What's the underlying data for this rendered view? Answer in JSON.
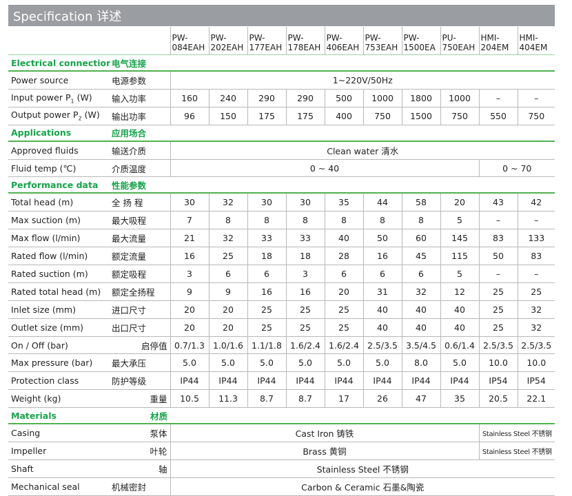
{
  "header": {
    "title": "Specification 详述"
  },
  "models": [
    [
      "PW-",
      "084EAH"
    ],
    [
      "PW-",
      "202EAH"
    ],
    [
      "PW-",
      "177EAH"
    ],
    [
      "PW-",
      "178EAH"
    ],
    [
      "PW-",
      "406EAH"
    ],
    [
      "PW-",
      "753EAH"
    ],
    [
      "PW-",
      "1500EA"
    ],
    [
      "PU-",
      "750EAH"
    ],
    [
      "HMI-",
      "204EM"
    ],
    [
      "HMI-",
      "404EM"
    ]
  ],
  "sections": {
    "electrical": {
      "en": "Electrical connection",
      "zh": "电气连接"
    },
    "applications": {
      "en": "Applications",
      "zh": "应用场合"
    },
    "performance": {
      "en": "Performance data",
      "zh": "性能参数"
    },
    "materials": {
      "en": "Materials",
      "zh": "材质"
    }
  },
  "rows": {
    "power_source": {
      "en": "Power source",
      "zh": "电源参数",
      "value": "1~220V/50Hz"
    },
    "input_power": {
      "en": "Input power P",
      "sub": "1",
      "unit": " (W)",
      "zh": "输入功率",
      "values": [
        "160",
        "240",
        "290",
        "290",
        "500",
        "1000",
        "1800",
        "1000",
        "–",
        "–"
      ]
    },
    "output_power": {
      "en": "Output power P",
      "sub": "2",
      "unit": " (W)",
      "zh": "输出功率",
      "values": [
        "96",
        "150",
        "175",
        "175",
        "400",
        "750",
        "1500",
        "750",
        "550",
        "750"
      ]
    },
    "approved_fluids": {
      "en": "Approved fluids",
      "zh": "输送介质",
      "value": "Clean water 清水"
    },
    "fluid_temp": {
      "en": "Fluid temp (℃)",
      "zh": "介质温度",
      "value_a": "0 ~ 40",
      "value_b": "0 ~ 70"
    },
    "total_head": {
      "en": "Total head (m)",
      "zh": "全 扬 程",
      "values": [
        "30",
        "32",
        "30",
        "30",
        "35",
        "44",
        "58",
        "20",
        "43",
        "42"
      ]
    },
    "max_suction": {
      "en": "Max suction (m)",
      "zh": "最大吸程",
      "values": [
        "7",
        "8",
        "8",
        "8",
        "8",
        "8",
        "8",
        "5",
        "–",
        "–"
      ]
    },
    "max_flow": {
      "en": "Max flow (l/min)",
      "zh": "最大流量",
      "values": [
        "21",
        "32",
        "33",
        "33",
        "40",
        "50",
        "60",
        "145",
        "83",
        "133"
      ]
    },
    "rated_flow": {
      "en": "Rated flow (l/min)",
      "zh": "额定流量",
      "values": [
        "16",
        "25",
        "18",
        "18",
        "28",
        "16",
        "45",
        "115",
        "50",
        "83"
      ]
    },
    "rated_suction": {
      "en": "Rated suction (m)",
      "zh": "额定吸程",
      "values": [
        "3",
        "6",
        "6",
        "3",
        "6",
        "6",
        "6",
        "5",
        "–",
        "–"
      ]
    },
    "rated_total_head": {
      "en": "Rated total head (m)",
      "zh": "额定全扬程",
      "values": [
        "9",
        "9",
        "16",
        "16",
        "20",
        "31",
        "32",
        "12",
        "25",
        "25"
      ]
    },
    "inlet_size": {
      "en": "Inlet size (mm)",
      "zh": "进口尺寸",
      "values": [
        "20",
        "20",
        "25",
        "25",
        "25",
        "40",
        "40",
        "40",
        "25",
        "32"
      ]
    },
    "outlet_size": {
      "en": "Outlet size (mm)",
      "zh": "出口尺寸",
      "values": [
        "20",
        "20",
        "25",
        "25",
        "25",
        "40",
        "40",
        "40",
        "25",
        "32"
      ]
    },
    "on_off": {
      "en": "On / Off (bar)",
      "zh": "启停值",
      "values": [
        "0.7/1.3",
        "1.0/1.6",
        "1.1/1.8",
        "1.6/2.4",
        "1.6/2.4",
        "2.5/3.5",
        "3.5/4.5",
        "0.6/1.4",
        "2.5/3.5",
        "2.5/3.5"
      ]
    },
    "max_pressure": {
      "en": "Max pressure (bar)",
      "zh": "最大承压",
      "values": [
        "5.0",
        "5.0",
        "5.0",
        "5.0",
        "5.0",
        "5.0",
        "8.0",
        "5.0",
        "10.0",
        "10.0"
      ]
    },
    "protection_class": {
      "en": "Protection class",
      "zh": "防护等级",
      "values": [
        "IP44",
        "IP44",
        "IP44",
        "IP44",
        "IP44",
        "IP44",
        "IP44",
        "IP44",
        "IP54",
        "IP54"
      ]
    },
    "weight": {
      "en": "Weight (kg)",
      "zh": "重量",
      "values": [
        "10.5",
        "11.3",
        "8.7",
        "8.7",
        "17",
        "26",
        "47",
        "35",
        "20.5",
        "22.1"
      ]
    },
    "casing": {
      "en": "Casing",
      "zh": "泵体",
      "value_a": "Cast Iron 铸铁",
      "value_b": "Stainless Steel 不锈钢"
    },
    "impeller": {
      "en": "Impeller",
      "zh": "叶轮",
      "value_a": "Brass 黄铜",
      "value_b": "Stainless Steel 不锈钢"
    },
    "shaft": {
      "en": "Shaft",
      "zh": "轴",
      "value": "Stainless Steel 不锈钢"
    },
    "mechanical_seal": {
      "en": "Mechanical seal",
      "zh": "机械密封",
      "value": "Carbon & Ceramic 石墨&陶瓷"
    }
  }
}
